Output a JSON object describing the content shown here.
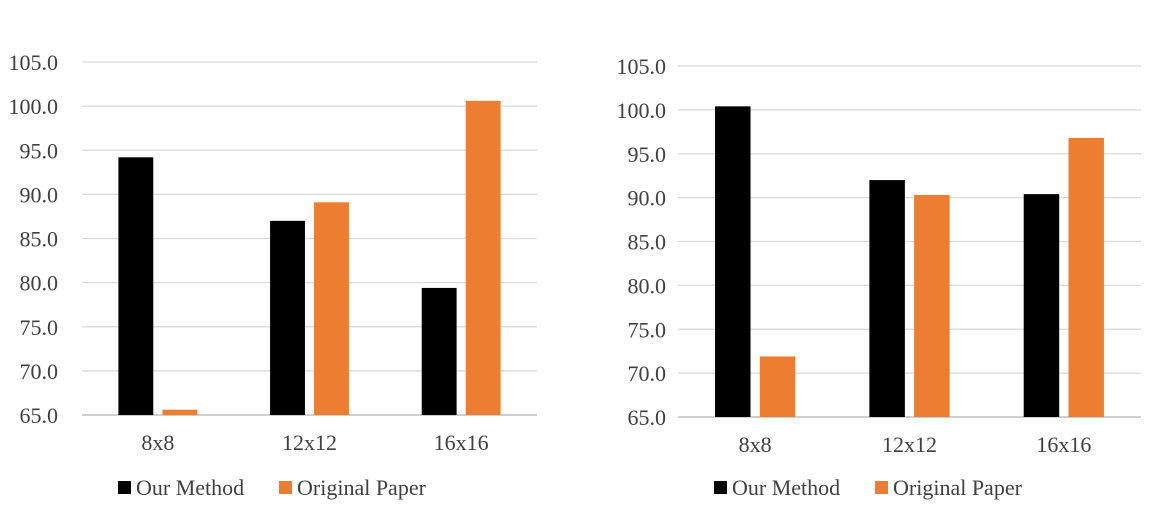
{
  "colors": {
    "our_method": "#000000",
    "original_paper": "#ED7D31",
    "gridline": "#D9D9D9",
    "axis": "#BFBFBF",
    "text": "#404040"
  },
  "chart_data": [
    {
      "type": "bar",
      "title": "",
      "xlabel": "",
      "ylabel": "",
      "categories": [
        "8x8",
        "12x12",
        "16x16"
      ],
      "ylim": [
        65.0,
        105.0
      ],
      "yticks": [
        "65.0",
        "70.0",
        "75.0",
        "80.0",
        "85.0",
        "90.0",
        "95.0",
        "100.0",
        "105.0"
      ],
      "grid": true,
      "legend_position": "bottom",
      "series": [
        {
          "name": "Our Method",
          "color": "#000000",
          "values": [
            94.2,
            87.0,
            79.4
          ]
        },
        {
          "name": "Original Paper",
          "color": "#ED7D31",
          "values": [
            65.6,
            89.1,
            100.6
          ]
        }
      ]
    },
    {
      "type": "bar",
      "title": "",
      "xlabel": "",
      "ylabel": "",
      "categories": [
        "8x8",
        "12x12",
        "16x16"
      ],
      "ylim": [
        65.0,
        105.0
      ],
      "yticks": [
        "65.0",
        "70.0",
        "75.0",
        "80.0",
        "85.0",
        "90.0",
        "95.0",
        "100.0",
        "105.0"
      ],
      "grid": true,
      "legend_position": "bottom",
      "series": [
        {
          "name": "Our Method",
          "color": "#000000",
          "values": [
            100.4,
            92.0,
            90.4
          ]
        },
        {
          "name": "Original Paper",
          "color": "#ED7D31",
          "values": [
            71.9,
            90.3,
            96.8
          ]
        }
      ]
    }
  ]
}
